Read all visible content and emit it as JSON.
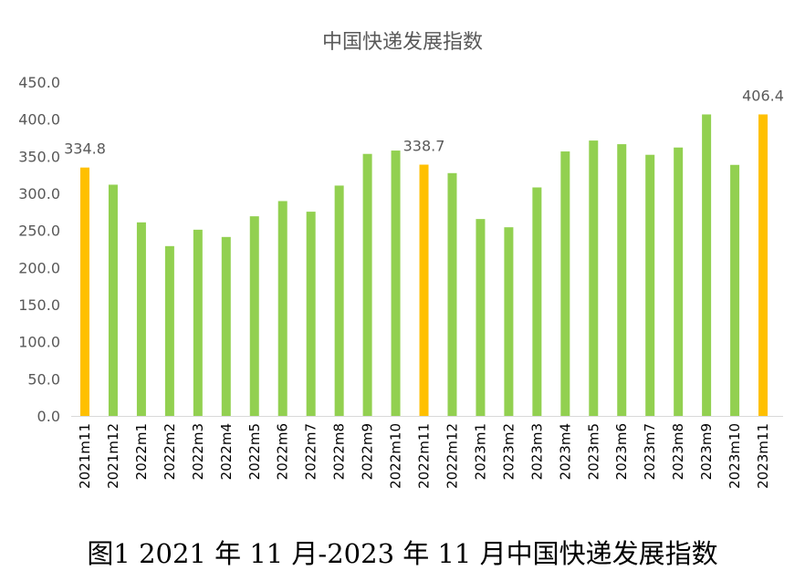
{
  "chart_data": {
    "type": "bar",
    "title": "中国快递发展指数",
    "xlabel": "",
    "ylabel": "",
    "ylim": [
      0,
      450
    ],
    "yticks": [
      "0.0",
      "50.0",
      "100.0",
      "150.0",
      "200.0",
      "250.0",
      "300.0",
      "350.0",
      "400.0",
      "450.0"
    ],
    "grid": false,
    "legend": "none",
    "categories": [
      "2021m11",
      "2021m12",
      "2022m1",
      "2022m2",
      "2022m3",
      "2022m4",
      "2022m5",
      "2022m6",
      "2022m7",
      "2022m8",
      "2022m9",
      "2022m10",
      "2022m11",
      "2022m12",
      "2023m1",
      "2023m2",
      "2023m3",
      "2023m4",
      "2023m5",
      "2023m6",
      "2023m7",
      "2023m8",
      "2023m9",
      "2023m10",
      "2023m11"
    ],
    "values": [
      334.8,
      311.7,
      260.9,
      228.9,
      251.0,
      241.2,
      269.1,
      289.6,
      275.3,
      310.5,
      353.2,
      357.7,
      338.7,
      327.3,
      265.4,
      254.3,
      308.0,
      356.5,
      371.2,
      366.3,
      352.0,
      361.8,
      406.4,
      338.4,
      406.4
    ],
    "highlighted": [
      "2021m11",
      "2022m11",
      "2023m11"
    ],
    "data_labels": {
      "2021m11": "334.8",
      "2022m11": "338.7",
      "2023m11": "406.4"
    },
    "colors": {
      "normal": "#92D050",
      "highlight": "#FFC000",
      "text": "#595959"
    }
  },
  "caption": "图1 2021 年 11 月-2023 年 11 月中国快递发展指数"
}
